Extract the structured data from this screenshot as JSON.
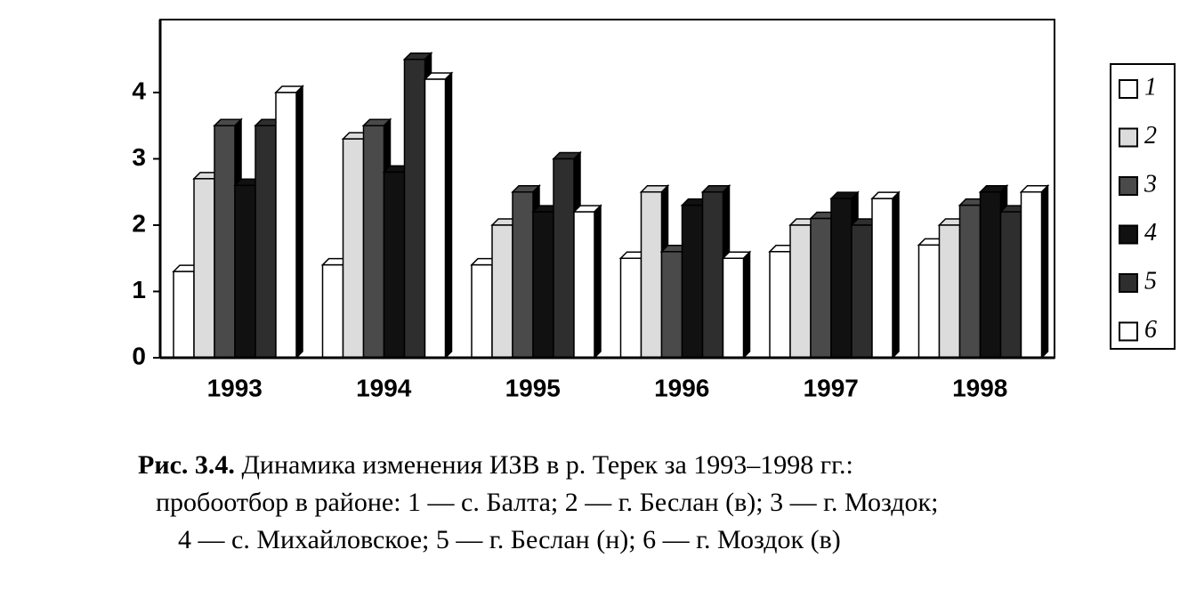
{
  "chart_data": {
    "type": "bar",
    "categories": [
      "1993",
      "1994",
      "1995",
      "1996",
      "1997",
      "1998"
    ],
    "series": [
      {
        "name": "1",
        "color": "#ffffff",
        "values": [
          1.3,
          1.4,
          1.4,
          1.5,
          1.6,
          1.7
        ]
      },
      {
        "name": "2",
        "color": "#dcdcdc",
        "values": [
          2.7,
          3.3,
          2.0,
          2.5,
          2.0,
          2.0
        ]
      },
      {
        "name": "3",
        "color": "#4a4a4a",
        "values": [
          3.5,
          3.5,
          2.5,
          1.6,
          2.1,
          2.3
        ]
      },
      {
        "name": "4",
        "color": "#111111",
        "values": [
          2.6,
          2.8,
          2.2,
          2.3,
          2.4,
          2.5
        ]
      },
      {
        "name": "5",
        "color": "#2e2e2e",
        "values": [
          3.5,
          4.5,
          3.0,
          2.5,
          2.0,
          2.2
        ]
      },
      {
        "name": "6",
        "color": "#ffffff",
        "values": [
          4.0,
          4.2,
          2.2,
          1.5,
          2.4,
          2.5
        ]
      }
    ],
    "ylim": [
      0,
      5.1
    ],
    "yticks": [
      0,
      1,
      2,
      3,
      4
    ],
    "legend": "right",
    "caption_label": "Рис. 3.4.",
    "caption": [
      "Динамика изменения ИЗВ в р. Терек за 1993–1998 гг.:",
      "пробоотбор в районе: 1 — с. Балта; 2 — г. Беслан (в); 3 — г. Моздок;",
      "4 — с. Михайловское; 5 — г. Беслан (н); 6 — г. Моздок (в)"
    ]
  }
}
